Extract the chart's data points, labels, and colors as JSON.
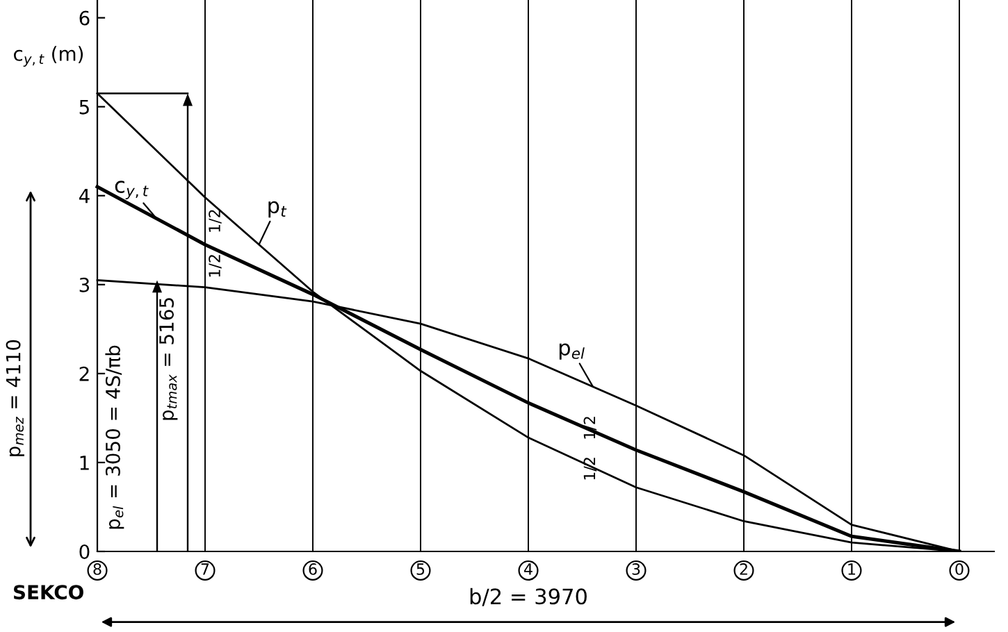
{
  "chart_data": {
    "type": "line",
    "xlabel": "SEKCO",
    "ylabel": "c$_{y,t}$ (m)",
    "categories": [
      "8",
      "7",
      "6",
      "5",
      "4",
      "3",
      "2",
      "1",
      "0"
    ],
    "series": [
      {
        "color": "#000000",
        "values": [
          5.15,
          3.98,
          2.92,
          2.03,
          1.28,
          0.72,
          0.34,
          0.1,
          0
        ]
      },
      {
        "color": "#000000",
        "values": [
          4.1,
          3.45,
          2.89,
          2.27,
          1.67,
          1.14,
          0.67,
          0.17,
          0
        ]
      },
      {
        "color": "#000000",
        "values": [
          3.05,
          2.97,
          2.81,
          2.56,
          2.17,
          1.64,
          1.08,
          0.3,
          0
        ]
      }
    ],
    "ylim": [
      0,
      6.2
    ],
    "yticks": [
      0,
      1,
      2,
      3,
      4,
      5,
      6
    ],
    "grid": "x",
    "marker": "none",
    "line_style": "solid",
    "annotations": [
      "p$_{mez}$ = 4110",
      "p$_{el}$ = 3050 = 4S/πb",
      "p$_{tmax}$ = 5165",
      "p$_{t}$",
      "c$_{y,t}$",
      "p$_{el}$",
      "1/2",
      "1/2",
      "1/2",
      "1/2",
      "b/2 = 3970"
    ]
  }
}
